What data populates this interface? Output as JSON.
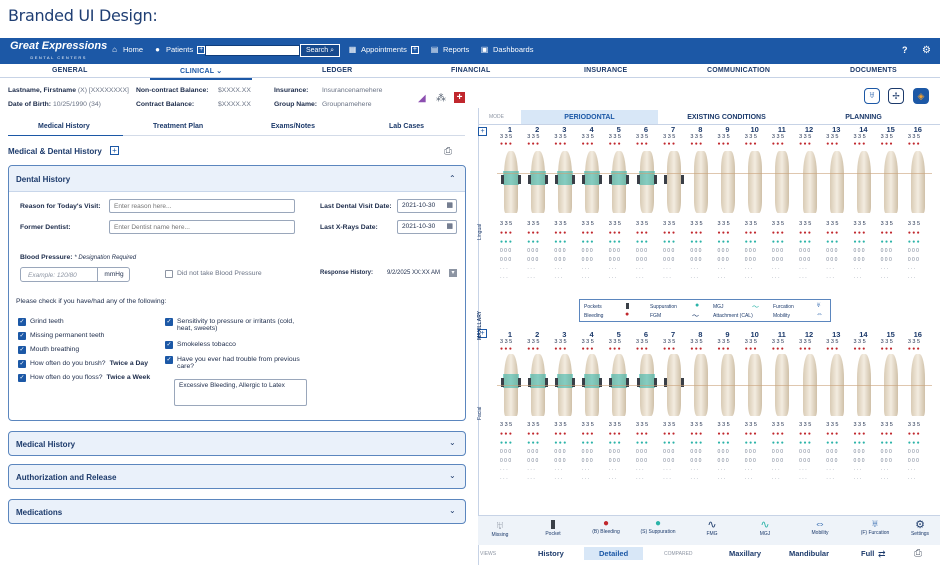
{
  "caption": "Branded UI Design:",
  "logo": {
    "name": "Great Expressions",
    "tag": "DENTAL CENTERS"
  },
  "nav": {
    "home": "Home",
    "patients": "Patients",
    "search_label": "Search",
    "appointments": "Appointments",
    "reports": "Reports",
    "dashboards": "Dashboards",
    "help": "?"
  },
  "tabs": [
    "GENERAL",
    "CLINICAL",
    "LEDGER",
    "FINANCIAL",
    "INSURANCE",
    "COMMUNICATION",
    "DOCUMENTS"
  ],
  "patient": {
    "name": "Lastname, Firstname",
    "name_suffix": "(X) [XXXXXXXX]",
    "dob_label": "Date of Birth:",
    "dob": "10/25/1990 (34)",
    "noncontract_label": "Non-contract Balance:",
    "noncontract": "$XXXX.XX",
    "contract_label": "Contract Balance:",
    "contract": "$XXXX.XX",
    "insurance_label": "Insurance:",
    "insurance": "Insurancenamehere",
    "group_label": "Group Name:",
    "group": "Groupnamehere"
  },
  "left_tabs": [
    "Medical History",
    "Treatment Plan",
    "Exams/Notes",
    "Lab Cases"
  ],
  "section_title": "Medical & Dental History",
  "dental_history": {
    "title": "Dental History",
    "reason_label": "Reason for Today's Visit:",
    "reason_placeholder": "Enter reason here...",
    "former_label": "Former Dentist:",
    "former_placeholder": "Enter Dentist name here...",
    "last_visit_label": "Last Dental Visit Date:",
    "last_visit": "2021-10-30",
    "last_xray_label": "Last X-Rays Date:",
    "last_xray": "2021-10-30",
    "bp_label": "Blood Pressure:",
    "bp_note": "* Designation Required",
    "bp_placeholder": "Example: 120/80",
    "bp_unit": "mmHg",
    "bp_skip": "Did not take Blood Pressure",
    "response_label": "Response History:",
    "response_value": "9/2/2025 XX:XX AM",
    "checklist_title": "Please check if you have/had any of the following:",
    "left_checks": [
      {
        "label": "Grind teeth",
        "extra": ""
      },
      {
        "label": "Missing permanent teeth",
        "extra": ""
      },
      {
        "label": "Mouth breathing",
        "extra": ""
      },
      {
        "label": "How often do you brush?",
        "extra": "Twice a Day"
      },
      {
        "label": "How often do you floss?",
        "extra": "Twice a Week"
      }
    ],
    "right_checks": [
      {
        "label": "Sensitivity to pressure or irritants (cold, heat, sweets)"
      },
      {
        "label": "Smokeless tobacco"
      },
      {
        "label": "Have you ever had trouble from previous care?"
      }
    ],
    "notes": "Excessive Bleeding, Allergic to Latex"
  },
  "collapsed_sections": [
    "Medical History",
    "Authorization and Release",
    "Medications"
  ],
  "chart": {
    "mode_label": "MODE",
    "modes": [
      "PERIODONTAL",
      "EXISTING CONDITIONS",
      "PLANNING"
    ],
    "teeth": [
      "1",
      "2",
      "3",
      "4",
      "5",
      "6",
      "7",
      "8",
      "9",
      "10",
      "11",
      "12",
      "13",
      "14",
      "15",
      "16"
    ],
    "depth": "3 3 5",
    "lingual_label": "Lingual",
    "facial_label": "Facial",
    "maxillary_label": "MAXILLARY",
    "legend": {
      "pockets": "Pockets",
      "bleeding": "Bleeding",
      "suppuration": "Suppuration",
      "fgm": "FGM",
      "mgj": "MGJ",
      "attachment": "Attachment (CAL)",
      "furcation": "Furcation",
      "mobility": "Mobility"
    },
    "tools": [
      "Missing",
      "Pocket",
      "(B) Bleeding",
      "(S) Suppuration",
      "FMG",
      "MGJ",
      "Mobility",
      "(F) Furcation",
      "Settings"
    ],
    "views_label": "VIEWS",
    "views": [
      "History",
      "Detailed"
    ],
    "compared_label": "COMPARED",
    "compared": [
      "Maxillary",
      "Mandibular",
      "Full"
    ],
    "colors": {
      "brand": "#1c58a6",
      "bleed": "#c0272d",
      "supp": "#2bb3a8"
    }
  }
}
